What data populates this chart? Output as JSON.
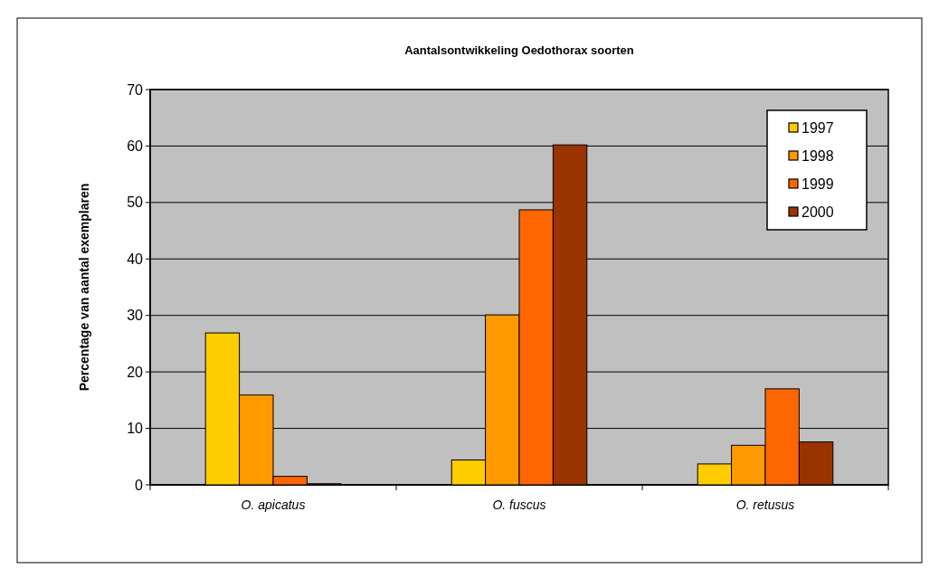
{
  "chart_data": {
    "type": "bar",
    "title": "Aantalsontwikkeling Oedothorax soorten",
    "ylabel": "Percentage van aantal exemplaren",
    "categories": [
      "O. apicatus",
      "O. fuscus",
      "O. retusus"
    ],
    "series": [
      {
        "name": "1997",
        "color": "#ffcc00",
        "values": [
          26.9,
          4.4,
          3.7
        ]
      },
      {
        "name": "1998",
        "color": "#ff9900",
        "values": [
          15.9,
          30.1,
          7.0
        ]
      },
      {
        "name": "1999",
        "color": "#ff6600",
        "values": [
          1.5,
          48.7,
          17.0
        ]
      },
      {
        "name": "2000",
        "color": "#993300",
        "values": [
          0.2,
          60.2,
          7.6
        ]
      }
    ],
    "ylim": [
      0,
      70
    ],
    "yticks": [
      0,
      10,
      20,
      30,
      40,
      50,
      60,
      70
    ],
    "grid": "y",
    "legend": "top right"
  }
}
